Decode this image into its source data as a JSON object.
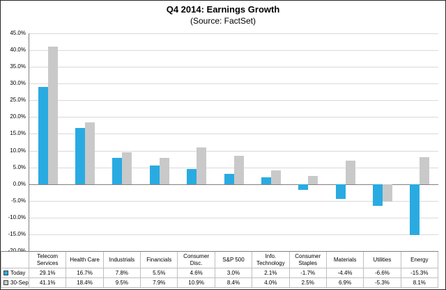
{
  "title": "Q4 2014: Earnings Growth",
  "subtitle": "(Source: FactSet)",
  "chart_data": {
    "type": "bar",
    "title": "Q4 2014: Earnings Growth",
    "subtitle": "(Source: FactSet)",
    "categories": [
      "Telecom Services",
      "Health Care",
      "Industrials",
      "Financials",
      "Consumer Disc.",
      "S&P 500",
      "Info. Technology",
      "Consumer Staples",
      "Materials",
      "Utilities",
      "Energy"
    ],
    "series": [
      {
        "name": "Today",
        "color": "#29abe2",
        "values": [
          29.1,
          16.7,
          7.8,
          5.5,
          4.6,
          3.0,
          2.1,
          -1.7,
          -4.4,
          -6.6,
          -15.3
        ]
      },
      {
        "name": "30-Sep",
        "color": "#c9c9c9",
        "values": [
          41.1,
          18.4,
          9.5,
          7.9,
          10.9,
          8.4,
          4.0,
          2.5,
          6.9,
          -5.3,
          8.1
        ]
      }
    ],
    "ylim": [
      -20,
      45
    ],
    "ytick_step": 5,
    "ytick_format": "0.0%",
    "grid": true,
    "legend_position": "table-bottom",
    "colors": {
      "today_bar": "#29abe2",
      "sep30_bar": "#c9c9c9",
      "gridline": "#d9d9d9",
      "axis": "#7f7f7f"
    }
  }
}
